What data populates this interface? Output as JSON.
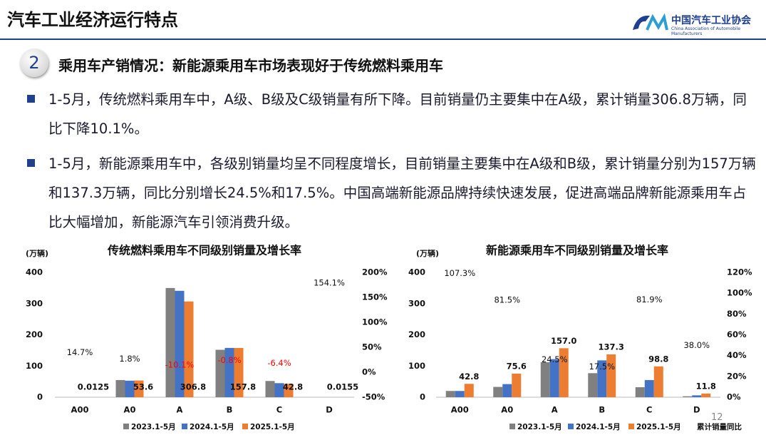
{
  "header": {
    "title": "汽车工业经济运行特点",
    "logo_name": "中国汽车工业协会",
    "logo_subtitle": "China Association of Automobile Manufacturers"
  },
  "section": {
    "number": "2",
    "heading": "乘用车产销情况：新能源乘用车市场表现好于传统燃料乘用车"
  },
  "bullets": [
    "1-5月，传统燃料乘用车中，A级、B级及C级销量有所下降。目前销量仍主要集中在A级，累计销量306.8万辆，同比下降10.1%。",
    "1-5月，新能源乘用车中，各级别销量均呈不同程度增长，目前销量主要集中在A级和B级，累计销量分别为157万辆和137.3万辆，同比分别增长24.5%和17.5%。中国高端新能源品牌持续快速发展，促进高端品牌新能源乘用车占比大幅增加，新能源汽车引领消费升级。"
  ],
  "page_number": "12",
  "chart_data": [
    {
      "type": "bar",
      "title": "传统燃料乘用车不同级别销量及增长率",
      "y_label": "(万辆)",
      "categories": [
        "A00",
        "A0",
        "A",
        "B",
        "C",
        "D"
      ],
      "series": [
        {
          "name": "2023.1-5月",
          "color": "#808080",
          "values": [
            0.01,
            55,
            350,
            152,
            52,
            0.01
          ]
        },
        {
          "name": "2024.1-5月",
          "color": "#4472c4",
          "values": [
            0.01,
            53,
            341,
            158,
            45,
            0.01
          ]
        },
        {
          "name": "2025.1-5月",
          "color": "#ed7d31",
          "values": [
            0.0125,
            53.6,
            306.8,
            157.8,
            42.8,
            0.0155
          ],
          "label_position": "base"
        }
      ],
      "growth": {
        "values": [
          14.7,
          1.8,
          -10.1,
          -0.8,
          -6.4,
          154.1
        ],
        "value_labels": [
          "14.7%",
          "1.8%",
          "-10.1%",
          "-0.8%",
          "-6.4%",
          "154.1%"
        ],
        "negative_color": "#ff0000"
      },
      "ylim": [
        0,
        400
      ],
      "yticks": [
        0,
        100,
        200,
        300,
        400
      ],
      "y2lim": [
        -50,
        200
      ],
      "y2ticks": [
        {
          "value": -50,
          "label": "-50%"
        },
        {
          "value": 0,
          "label": "0%"
        },
        {
          "value": 50,
          "label": "50%"
        },
        {
          "value": 100,
          "label": "100%"
        },
        {
          "value": 150,
          "label": "150%"
        },
        {
          "value": 200,
          "label": "200%"
        }
      ]
    },
    {
      "type": "bar",
      "title": "新能源乘用车不同级别销量及增长率",
      "y_label": "(万辆)",
      "categories": [
        "A00",
        "A0",
        "A",
        "B",
        "C",
        "D"
      ],
      "series": [
        {
          "name": "2023.1-5月",
          "color": "#808080",
          "values": [
            20,
            33,
            112,
            77,
            32,
            3
          ]
        },
        {
          "name": "2024.1-5月",
          "color": "#4472c4",
          "values": [
            20,
            42,
            122,
            118,
            55,
            6
          ]
        },
        {
          "name": "2025.1-5月",
          "color": "#ed7d31",
          "values": [
            42.8,
            75.6,
            157,
            137.3,
            98.8,
            11.8
          ],
          "value_labels": [
            "42.8",
            "75.6",
            "157.0",
            "137.3",
            "98.8",
            "11.8"
          ],
          "label_position": "top"
        }
      ],
      "growth": {
        "name": "累计销量同比",
        "values": [
          107.3,
          81.5,
          24.5,
          17.5,
          81.9,
          38
        ],
        "value_labels": [
          "107.3%",
          "81.5%",
          "24.5%",
          "17.5%",
          "81.9%",
          "38.0%"
        ]
      },
      "ylim": [
        0,
        400
      ],
      "yticks": [
        0,
        100,
        200,
        300,
        400
      ],
      "y2lim": [
        0,
        120
      ],
      "y2ticks": [
        {
          "value": 0,
          "label": "0%"
        },
        {
          "value": 20,
          "label": "20%"
        },
        {
          "value": 40,
          "label": "40%"
        },
        {
          "value": 60,
          "label": "60%"
        },
        {
          "value": 80,
          "label": "80%"
        },
        {
          "value": 100,
          "label": "100%"
        },
        {
          "value": 120,
          "label": "120%"
        }
      ]
    }
  ]
}
